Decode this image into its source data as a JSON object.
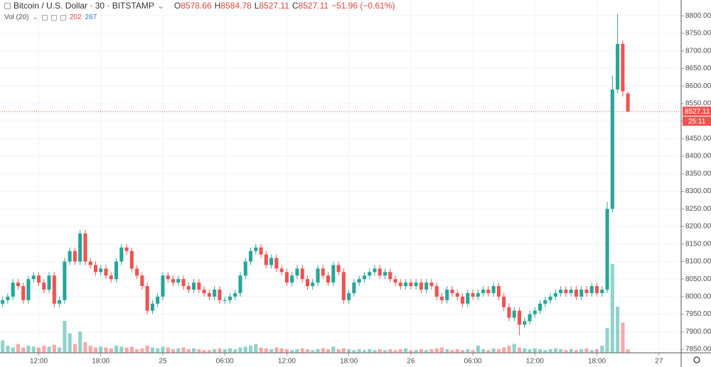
{
  "header": {
    "symbol": "Bitcoin / U.S. Dollar · 30 · BITSTAMP",
    "ohlc_keys": [
      "O",
      "H",
      "L",
      "C"
    ],
    "change": "−51.96 (−0.61%)",
    "volume_label": "Vol (20)",
    "volume_ma": "267"
  },
  "chart_data": {
    "type": "candlestick",
    "open": [
      7980,
      7990,
      8000,
      8040,
      8030,
      7990,
      8050,
      8060,
      8040,
      8020,
      8060,
      7980,
      7990,
      8100,
      8130,
      8100,
      8180,
      8100,
      8090,
      8070,
      8080,
      8060,
      8050,
      8100,
      8140,
      8130,
      8080,
      8060,
      8030,
      7960,
      7980,
      8000,
      8060,
      8050,
      8040,
      8050,
      8030,
      8020,
      8040,
      8020,
      8010,
      8000,
      8020,
      7990,
      7990,
      8000,
      8010,
      8060,
      8100,
      8130,
      8140,
      8120,
      8090,
      8110,
      8080,
      8070,
      8040,
      8060,
      8080,
      8050,
      8030,
      8040,
      8080,
      8060,
      8040,
      8090,
      8070,
      7990,
      8010,
      8040,
      8050,
      8060,
      8070,
      8080,
      8060,
      8070,
      8050,
      8040,
      8030,
      8040,
      8030,
      8040,
      8020,
      8040,
      8030,
      8000,
      7990,
      8020,
      8010,
      8000,
      7980,
      8010,
      8000,
      8010,
      8020,
      8010,
      8030,
      8000,
      7970,
      7940,
      7960,
      7920,
      7930,
      7950,
      7960,
      7980,
      7990,
      8000,
      8010,
      8020,
      8010,
      8020,
      8000,
      8020,
      8010,
      8030,
      8010,
      8020,
      8250,
      8590,
      8720,
      8578.66
    ],
    "high": [
      8000,
      8010,
      8050,
      8050,
      8040,
      8060,
      8070,
      8070,
      8050,
      8070,
      8070,
      8000,
      8110,
      8140,
      8140,
      8190,
      8190,
      8110,
      8100,
      8090,
      8090,
      8070,
      8110,
      8150,
      8150,
      8140,
      8090,
      8070,
      8040,
      7990,
      8010,
      8070,
      8070,
      8060,
      8060,
      8060,
      8040,
      8050,
      8050,
      8030,
      8020,
      8030,
      8030,
      8000,
      8010,
      8020,
      8070,
      8110,
      8140,
      8150,
      8150,
      8130,
      8120,
      8120,
      8090,
      8080,
      8070,
      8090,
      8090,
      8060,
      8050,
      8090,
      8090,
      8070,
      8100,
      8100,
      8080,
      8020,
      8050,
      8060,
      8070,
      8080,
      8090,
      8090,
      8080,
      8080,
      8060,
      8050,
      8050,
      8050,
      8050,
      8050,
      8050,
      8050,
      8040,
      8010,
      8030,
      8030,
      8020,
      8010,
      8020,
      8020,
      8020,
      8030,
      8030,
      8040,
      8040,
      8010,
      7980,
      7970,
      7970,
      7940,
      7960,
      7970,
      7990,
      8000,
      8010,
      8020,
      8030,
      8030,
      8030,
      8030,
      8030,
      8030,
      8040,
      8040,
      8030,
      8270,
      8630,
      8805,
      8730,
      8584.78
    ],
    "low": [
      7970,
      7980,
      7990,
      8020,
      7980,
      7980,
      8040,
      8030,
      8010,
      8010,
      7970,
      7970,
      7980,
      8090,
      8090,
      8090,
      8090,
      8080,
      8060,
      8060,
      8050,
      8040,
      8040,
      8090,
      8120,
      8070,
      8050,
      8020,
      7950,
      7950,
      7970,
      7990,
      8040,
      8030,
      8030,
      8020,
      8010,
      8010,
      8010,
      8000,
      7990,
      7990,
      7980,
      7980,
      7980,
      7990,
      8000,
      8050,
      8090,
      8120,
      8110,
      8080,
      8080,
      8070,
      8060,
      8030,
      8030,
      8050,
      8040,
      8020,
      8020,
      8030,
      8050,
      8030,
      8030,
      8060,
      7980,
      7980,
      8000,
      8030,
      8040,
      8050,
      8060,
      8050,
      8050,
      8040,
      8030,
      8020,
      8020,
      8020,
      8020,
      8010,
      8010,
      8020,
      7990,
      7980,
      7980,
      8000,
      7990,
      7970,
      7970,
      7990,
      7990,
      8000,
      8000,
      8000,
      7990,
      7960,
      7930,
      7930,
      7890,
      7910,
      7920,
      7940,
      7950,
      7970,
      7980,
      7990,
      8000,
      8000,
      8000,
      7990,
      7990,
      8000,
      8000,
      8000,
      8000,
      8010,
      8240,
      8580,
      8570,
      8527.11
    ],
    "close": [
      7990,
      8000,
      8040,
      8030,
      7990,
      8050,
      8060,
      8040,
      8020,
      8060,
      7980,
      7990,
      8100,
      8130,
      8100,
      8180,
      8100,
      8090,
      8070,
      8080,
      8060,
      8050,
      8100,
      8140,
      8130,
      8080,
      8060,
      8030,
      7960,
      7980,
      8000,
      8060,
      8050,
      8040,
      8050,
      8030,
      8020,
      8040,
      8020,
      8010,
      8000,
      8020,
      7990,
      7990,
      8000,
      8010,
      8060,
      8100,
      8130,
      8140,
      8120,
      8090,
      8110,
      8080,
      8070,
      8040,
      8060,
      8080,
      8050,
      8030,
      8040,
      8080,
      8060,
      8040,
      8090,
      8070,
      7990,
      8010,
      8040,
      8050,
      8060,
      8070,
      8080,
      8060,
      8070,
      8050,
      8040,
      8030,
      8040,
      8030,
      8040,
      8020,
      8040,
      8030,
      8000,
      7990,
      8020,
      8010,
      8000,
      7980,
      8010,
      8000,
      8010,
      8020,
      8010,
      8030,
      8000,
      7970,
      7940,
      7960,
      7920,
      7930,
      7950,
      7960,
      7980,
      7990,
      8000,
      8010,
      8020,
      8010,
      8020,
      8000,
      8020,
      8010,
      8030,
      8010,
      8020,
      8250,
      8590,
      8720,
      8585,
      8527.11
    ],
    "volume": [
      700,
      400,
      300,
      500,
      300,
      400,
      350,
      300,
      400,
      350,
      450,
      300,
      1800,
      1100,
      500,
      1200,
      600,
      400,
      300,
      350,
      300,
      250,
      400,
      350,
      300,
      350,
      200,
      250,
      400,
      300,
      250,
      350,
      300,
      200,
      250,
      300,
      200,
      250,
      200,
      150,
      150,
      200,
      250,
      200,
      250,
      200,
      300,
      350,
      400,
      500,
      300,
      250,
      200,
      300,
      250,
      200,
      150,
      200,
      250,
      200,
      150,
      200,
      250,
      200,
      350,
      200,
      250,
      200,
      150,
      200,
      150,
      200,
      150,
      200,
      150,
      200,
      150,
      200,
      250,
      150,
      150,
      200,
      150,
      200,
      250,
      300,
      200,
      150,
      200,
      150,
      200,
      150,
      400,
      200,
      150,
      250,
      200,
      300,
      400,
      500,
      300,
      250,
      200,
      250,
      200,
      150,
      200,
      250,
      200,
      150,
      200,
      150,
      200,
      250,
      150,
      200,
      400,
      1400,
      5000,
      2600,
      1700,
      202
    ],
    "ylim": [
      7840,
      8845
    ],
    "yticks": [
      {
        "value": 7850,
        "label": "7850.00"
      },
      {
        "value": 7900,
        "label": "7900.00"
      },
      {
        "value": 7950,
        "label": "7950.00"
      },
      {
        "value": 8000,
        "label": "8000.00"
      },
      {
        "value": 8050,
        "label": "8050.00"
      },
      {
        "value": 8100,
        "label": "8100.00"
      },
      {
        "value": 8150,
        "label": "8150.00"
      },
      {
        "value": 8200,
        "label": "8200.00"
      },
      {
        "value": 8250,
        "label": "8250.00"
      },
      {
        "value": 8300,
        "label": "8300.00"
      },
      {
        "value": 8350,
        "label": "8350.00"
      },
      {
        "value": 8400,
        "label": "8400.00"
      },
      {
        "value": 8450,
        "label": "8450.00"
      },
      {
        "value": 8500,
        "label": "8500.00"
      },
      {
        "value": 8550,
        "label": "8550.00"
      },
      {
        "value": 8600,
        "label": "8600.00"
      },
      {
        "value": 8650,
        "label": "8650.00"
      },
      {
        "value": 8700,
        "label": "8700.00"
      },
      {
        "value": 8750,
        "label": "8750.00"
      },
      {
        "value": 8800,
        "label": "8800.00"
      }
    ],
    "xlim": [
      -0.5,
      131.3
    ],
    "xticks": [
      {
        "value": 7,
        "label": "12:00"
      },
      {
        "value": 19,
        "label": "18:00"
      },
      {
        "value": 31,
        "label": "25"
      },
      {
        "value": 43,
        "label": "06:00"
      },
      {
        "value": 55,
        "label": "12:00"
      },
      {
        "value": 67,
        "label": "18:00"
      },
      {
        "value": 79,
        "label": "26"
      },
      {
        "value": 91,
        "label": "06:00"
      },
      {
        "value": 103,
        "label": "12:00"
      },
      {
        "value": 115,
        "label": "18:00"
      },
      {
        "value": 127,
        "label": "27"
      }
    ],
    "countdown": "25:11",
    "up_color": "#26a69a",
    "down_color": "#ef5350",
    "grid": true
  }
}
